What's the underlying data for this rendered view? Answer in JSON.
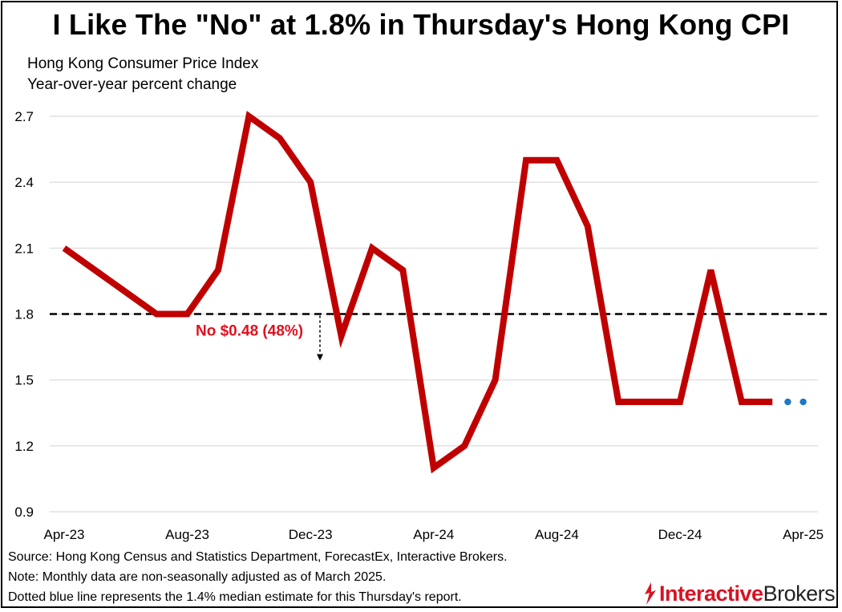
{
  "title": "I Like The \"No\" at 1.8% in Thursday's Hong Kong CPI",
  "subtitle": [
    "Hong Kong Consumer Price Index",
    "Year-over-year percent change"
  ],
  "footnotes": [
    "Source: Hong Kong Census and Statistics Department, ForecastEx, Interactive Brokers.",
    "Note: Monthly data are non-seasonally adjusted as of March 2025.",
    "Dotted blue line represents the 1.4% median estimate for this Thursday's report."
  ],
  "logo": {
    "part1": "Interactive",
    "part2": "Brokers"
  },
  "colors": {
    "series": "#c00000",
    "estimate": "#1f78c8",
    "annotation": "#e0111f",
    "threshold": "#000000",
    "grid": "#d9d9d9"
  },
  "chart_data": {
    "type": "line",
    "x": [
      "Apr-23",
      "May-23",
      "Jun-23",
      "Jul-23",
      "Aug-23",
      "Sep-23",
      "Oct-23",
      "Nov-23",
      "Dec-23",
      "Jan-24",
      "Feb-24",
      "Mar-24",
      "Apr-24",
      "May-24",
      "Jun-24",
      "Jul-24",
      "Aug-24",
      "Sep-24",
      "Oct-24",
      "Nov-24",
      "Dec-24",
      "Jan-25",
      "Feb-25",
      "Mar-25",
      "Apr-25"
    ],
    "x_tick_labels": [
      "Apr-23",
      "Aug-23",
      "Dec-23",
      "Apr-24",
      "Aug-24",
      "Dec-24",
      "Apr-25"
    ],
    "series": [
      {
        "values": [
          2.1,
          2.0,
          1.9,
          1.8,
          1.8,
          2.0,
          2.7,
          2.6,
          2.4,
          1.7,
          2.1,
          2.0,
          1.1,
          1.2,
          1.5,
          2.5,
          2.5,
          2.2,
          1.4,
          1.4,
          1.4,
          2.0,
          1.4,
          1.4,
          null
        ]
      }
    ],
    "estimate": {
      "x": [
        "Mar-25",
        "Apr-25"
      ],
      "value": 1.4
    },
    "threshold": {
      "value": 1.8,
      "label": "No $0.48 (48%)"
    },
    "ylim": [
      0.9,
      2.7
    ],
    "yticks": [
      0.9,
      1.2,
      1.5,
      1.8,
      2.1,
      2.4,
      2.7
    ],
    "grid": "horizontal"
  }
}
